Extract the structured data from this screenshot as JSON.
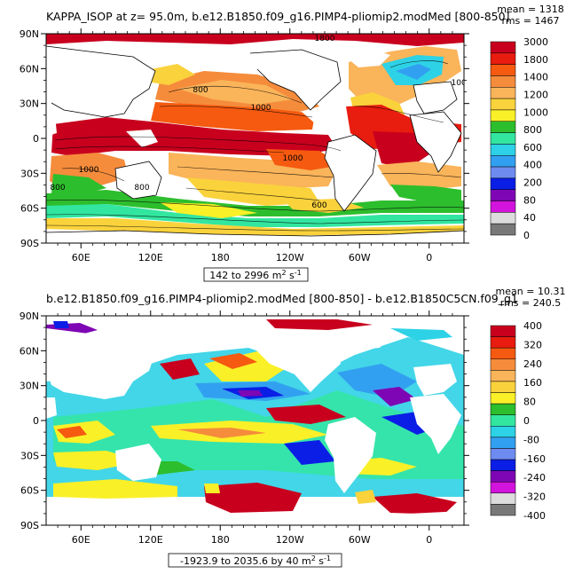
{
  "chart_data": [
    {
      "type": "heatmap",
      "title": "KAPPA_ISOP at z=   95.0m, b.e12.B1850.f09_g16.PIMP4-pliomip2.modMed [800-850]",
      "stats": {
        "mean": "mean = 1318",
        "rms": "rms = 1467"
      },
      "range_label": {
        "prefix": "142 to 2996 m",
        "sup": "2",
        "suffix": " s",
        "sup2": "-1"
      },
      "lat_ticks": [
        "90N",
        "60N",
        "30N",
        "0",
        "30S",
        "60S",
        "90S"
      ],
      "lon_ticks": [
        "60E",
        "120E",
        "180",
        "120W",
        "60W",
        "0"
      ],
      "colorbar": {
        "labels": [
          "3000",
          "1800",
          "1400",
          "1200",
          "1000",
          "800",
          "600",
          "400",
          "200",
          "80",
          "40",
          "0"
        ],
        "colors": [
          "#c8001e",
          "#e81c0f",
          "#f55a10",
          "#f58c3c",
          "#fab45a",
          "#fad23c",
          "#faf028",
          "#2dbe2d",
          "#32e6a0",
          "#2dd2e6",
          "#32a0f0",
          "#6e8cf0",
          "#0a1ee6",
          "#7e06b4",
          "#d214dc",
          "#dcdcdc",
          "#787878"
        ]
      },
      "contour_labels": [
        "1800",
        "800",
        "1000",
        "1000",
        "1000",
        "800",
        "600",
        "800",
        "1000"
      ]
    },
    {
      "type": "heatmap",
      "title": "b.e12.B1850.f09_g16.PIMP4-pliomip2.modMed [800-850] - b.e12.B1850C5CN.f09_g1",
      "stats": {
        "mean": "mean = 10.31",
        "rms": "rms = 240.5"
      },
      "range_label": {
        "prefix": "-1923.9 to 2035.6 by 40 m",
        "sup": "2",
        "suffix": " s",
        "sup2": "-1"
      },
      "lat_ticks": [
        "90N",
        "60N",
        "30N",
        "0",
        "30S",
        "60S",
        "90S"
      ],
      "lon_ticks": [
        "60E",
        "120E",
        "180",
        "120W",
        "60W",
        "0"
      ],
      "colorbar": {
        "labels": [
          "400",
          "320",
          "240",
          "160",
          "80",
          "0",
          "-80",
          "-160",
          "-240",
          "-320",
          "-400"
        ],
        "colors": [
          "#c8001e",
          "#e81c0f",
          "#f55a10",
          "#f58c3c",
          "#fab45a",
          "#fad23c",
          "#faf028",
          "#2dbe2d",
          "#32e6a0",
          "#2dd2e6",
          "#32a0f0",
          "#6e8cf0",
          "#0a1ee6",
          "#7e06b4",
          "#d214dc",
          "#dcdcdc",
          "#787878"
        ]
      }
    }
  ]
}
